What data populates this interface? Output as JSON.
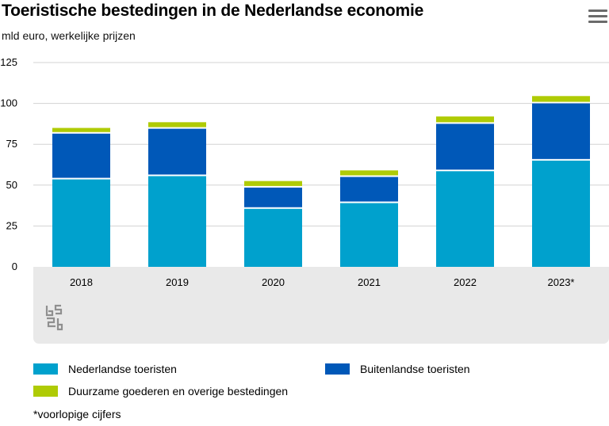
{
  "header": {
    "title": "Toeristische bestedingen in de Nederlandse economie",
    "subtitle": "mld euro, werkelijke prijzen",
    "menu_icon": "hamburger-menu-icon"
  },
  "logo": {
    "icon": "cbs-logo-icon",
    "text": "cbs"
  },
  "footnote": "*voorlopige cijfers",
  "colors": {
    "nederlandse": "#00a1cd",
    "buitenlandse": "#0058b8",
    "duurzame": "#afcb05",
    "plot_background": "#e9e9e9",
    "gridline": "#d3d3d3"
  },
  "chart_data": {
    "type": "bar",
    "stacked": true,
    "title": "Toeristische bestedingen in de Nederlandse economie",
    "subtitle": "mld euro, werkelijke prijzen",
    "xlabel": "",
    "ylabel": "",
    "ylim": [
      0,
      125
    ],
    "yticks": [
      0,
      25,
      50,
      75,
      100,
      125
    ],
    "grid": true,
    "legend_position": "bottom",
    "categories": [
      "2018",
      "2019",
      "2020",
      "2021",
      "2022",
      "2023*"
    ],
    "series": [
      {
        "name": "Nederlandse toeristen",
        "color": "#00a1cd",
        "values": [
          53.5,
          55.5,
          35.5,
          39,
          58.5,
          65
        ]
      },
      {
        "name": "Buitenlandse toeristen",
        "color": "#0058b8",
        "values": [
          28,
          29,
          13,
          16,
          29,
          35
        ]
      },
      {
        "name": "Duurzame goederen en overige bestedingen",
        "color": "#afcb05",
        "values": [
          3.5,
          4,
          4,
          4,
          4.5,
          4.5
        ]
      }
    ]
  }
}
